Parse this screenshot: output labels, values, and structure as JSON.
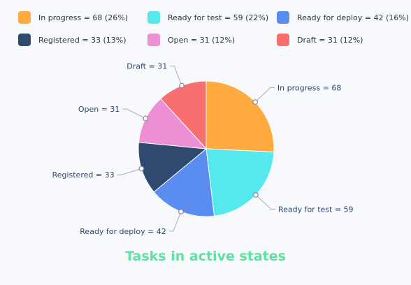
{
  "chart_data": {
    "type": "pie",
    "title": "Tasks in active states",
    "legend_position": "top",
    "slices": [
      {
        "label": "In progress",
        "value": 68,
        "legend_text": "In progress = 68 (26%)",
        "data_label": "In progress = 68",
        "color": "#ffab40"
      },
      {
        "label": "Ready for test",
        "value": 59,
        "legend_text": "Ready for test = 59 (22%)",
        "data_label": "Ready for test = 59",
        "color": "#55e9ef"
      },
      {
        "label": "Ready for deploy",
        "value": 42,
        "legend_text": "Ready for deploy = 42 (16%)",
        "data_label": "Ready for deploy = 42",
        "color": "#5b8cef"
      },
      {
        "label": "Registered",
        "value": 33,
        "legend_text": "Registered = 33 (13%)",
        "data_label": "Registered = 33",
        "color": "#2f4a6e"
      },
      {
        "label": "Open",
        "value": 31,
        "legend_text": "Open = 31 (12%)",
        "data_label": "Open = 31",
        "color": "#ec8fd4"
      },
      {
        "label": "Draft",
        "value": 31,
        "legend_text": "Draft = 31 (12%)",
        "data_label": "Draft = 31",
        "color": "#f76f6f"
      }
    ]
  }
}
